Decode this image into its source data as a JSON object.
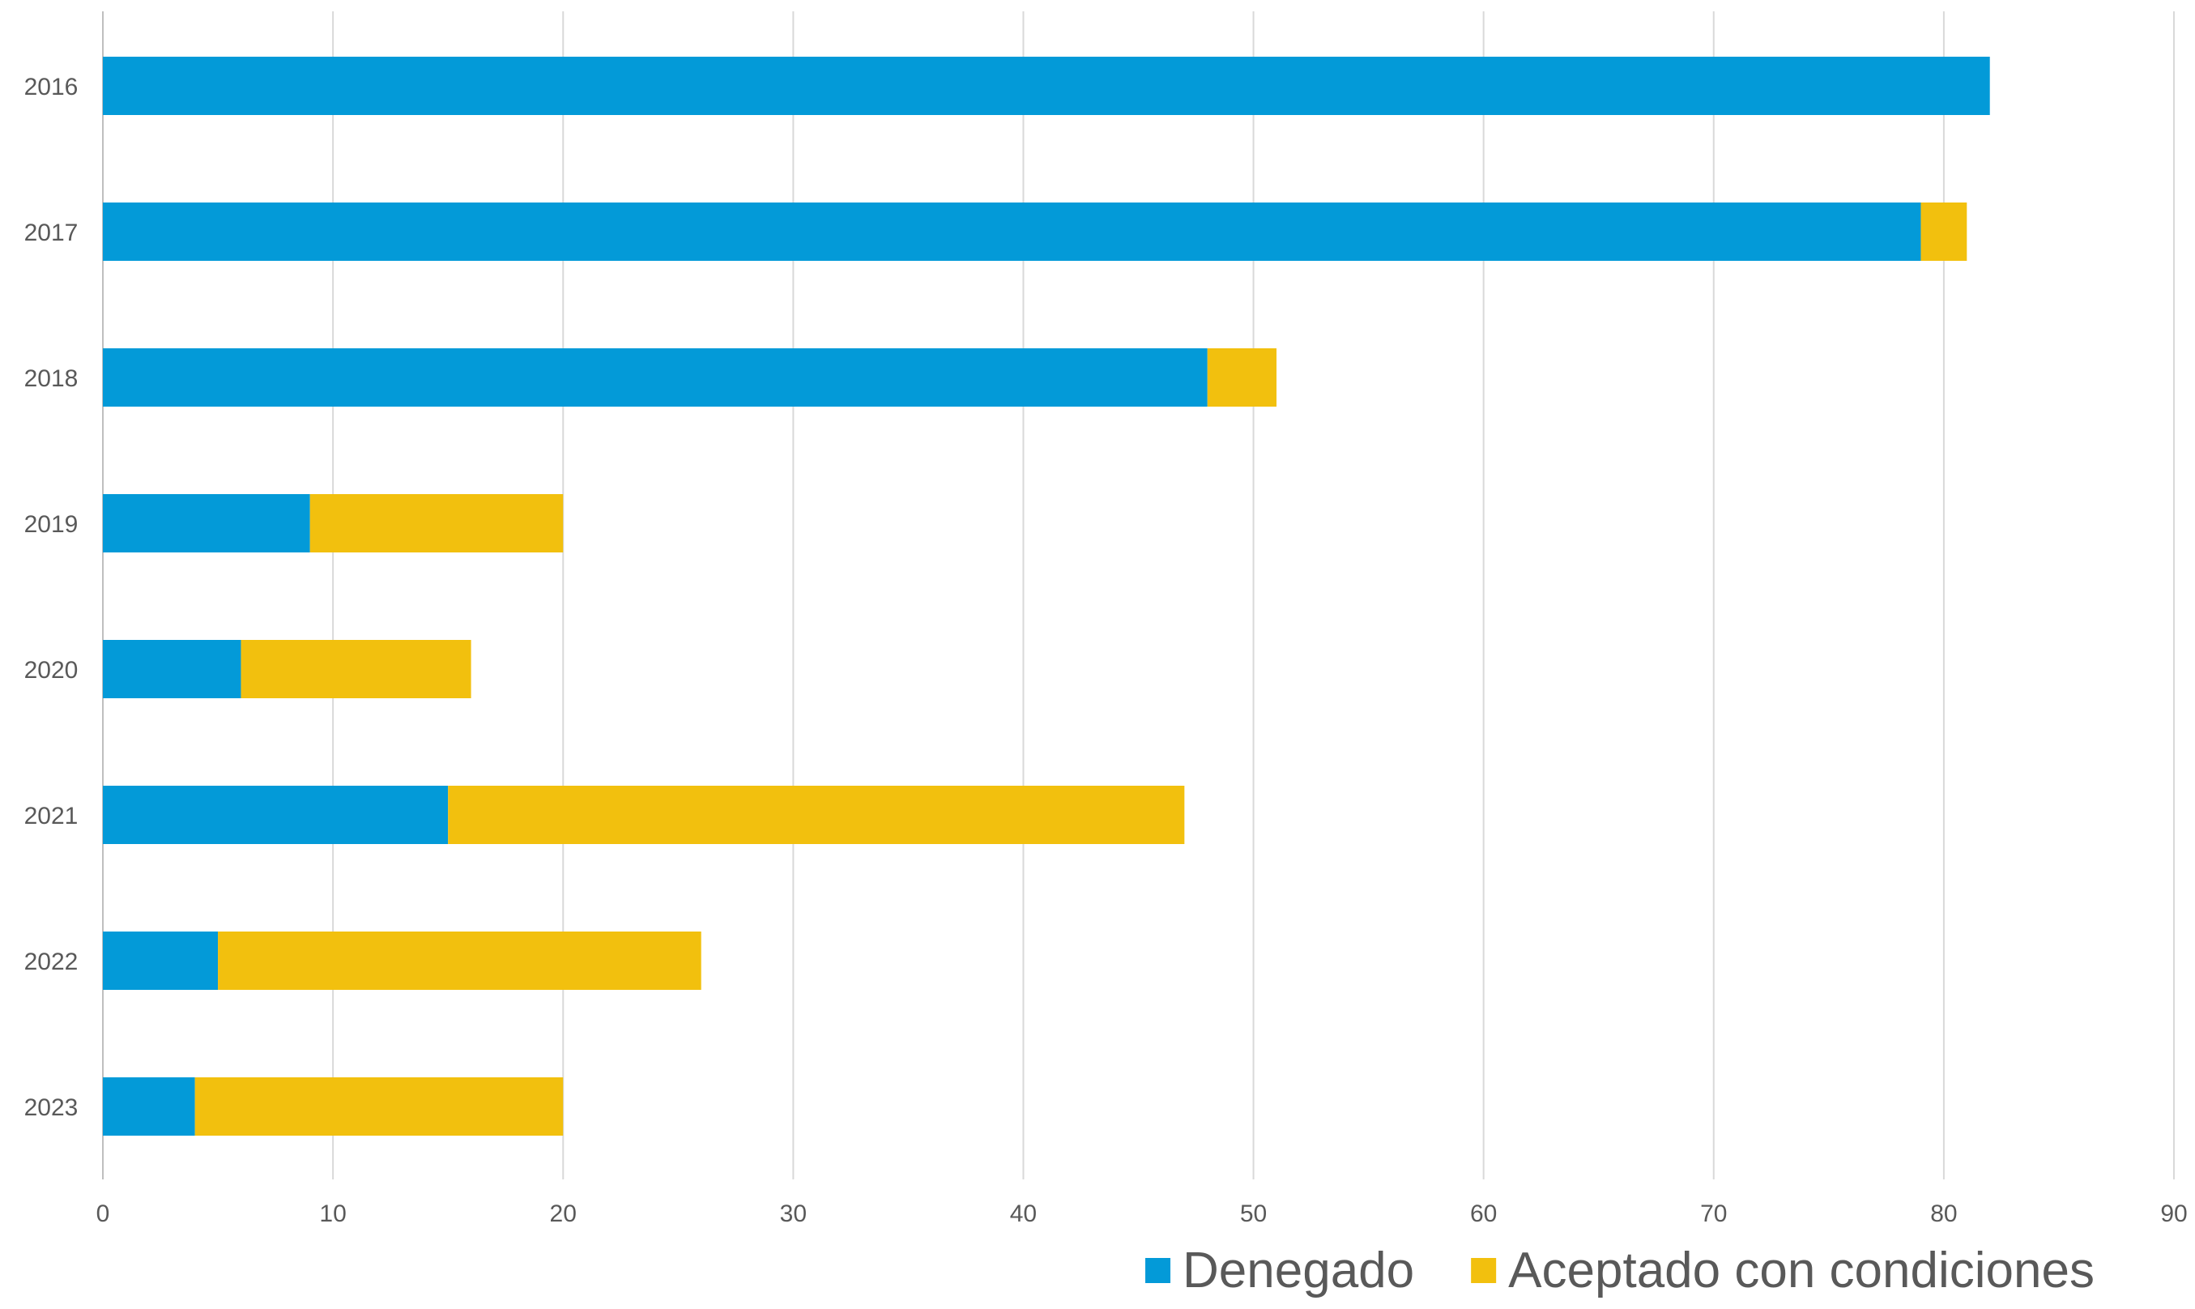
{
  "chart_data": {
    "type": "bar",
    "orientation": "horizontal",
    "stacked": true,
    "categories": [
      "2016",
      "2017",
      "2018",
      "2019",
      "2020",
      "2021",
      "2022",
      "2023"
    ],
    "series": [
      {
        "name": "Denegado",
        "color": "#039ad8",
        "values": [
          82,
          79,
          48,
          9,
          6,
          15,
          5,
          4
        ]
      },
      {
        "name": "Aceptado con condiciones",
        "color": "#f2c00e",
        "values": [
          0,
          2,
          3,
          11,
          10,
          32,
          21,
          16
        ]
      }
    ],
    "xlim": [
      0,
      90
    ],
    "xticks": [
      "0",
      "10",
      "20",
      "30",
      "40",
      "50",
      "60",
      "70",
      "80",
      "90"
    ],
    "grid": "vertical",
    "legend": "bottom-right"
  }
}
